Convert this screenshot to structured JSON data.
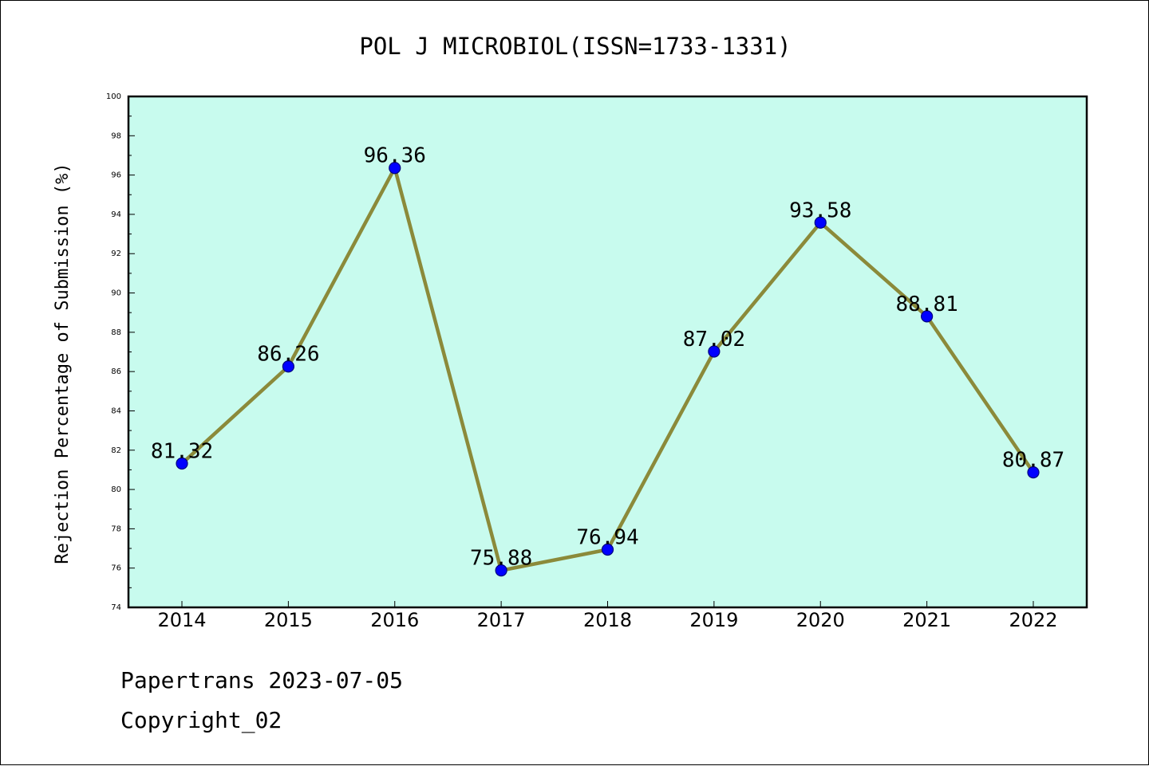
{
  "chart_data": {
    "type": "line",
    "title": "POL J MICROBIOL(ISSN=1733-1331)",
    "xlabel": "",
    "ylabel": "Rejection Percentage of Submission (%)",
    "categories": [
      "2014",
      "2015",
      "2016",
      "2017",
      "2018",
      "2019",
      "2020",
      "2021",
      "2022"
    ],
    "series": [
      {
        "values": [
          81.32,
          86.26,
          96.36,
          75.88,
          76.94,
          87.02,
          93.58,
          88.81,
          80.87
        ],
        "labels": [
          "81.32",
          "86.26",
          "96.36",
          "75.88",
          "76.94",
          "87.02",
          "93.58",
          "88.81",
          "80.87"
        ]
      }
    ],
    "ylim": [
      74,
      100
    ],
    "yticks": [
      "74",
      "76",
      "78",
      "80",
      "82",
      "84",
      "86",
      "88",
      "90",
      "92",
      "94",
      "96",
      "98",
      "100"
    ],
    "grid": false,
    "legend": "none",
    "colors": {
      "plot_background": "#c8fbee",
      "line": "#8b8a3a",
      "marker": "#0000ff",
      "marker_edge": "#000080"
    }
  },
  "footer": {
    "line1": "Papertrans 2023-07-05",
    "line2": "Copyright_02"
  }
}
